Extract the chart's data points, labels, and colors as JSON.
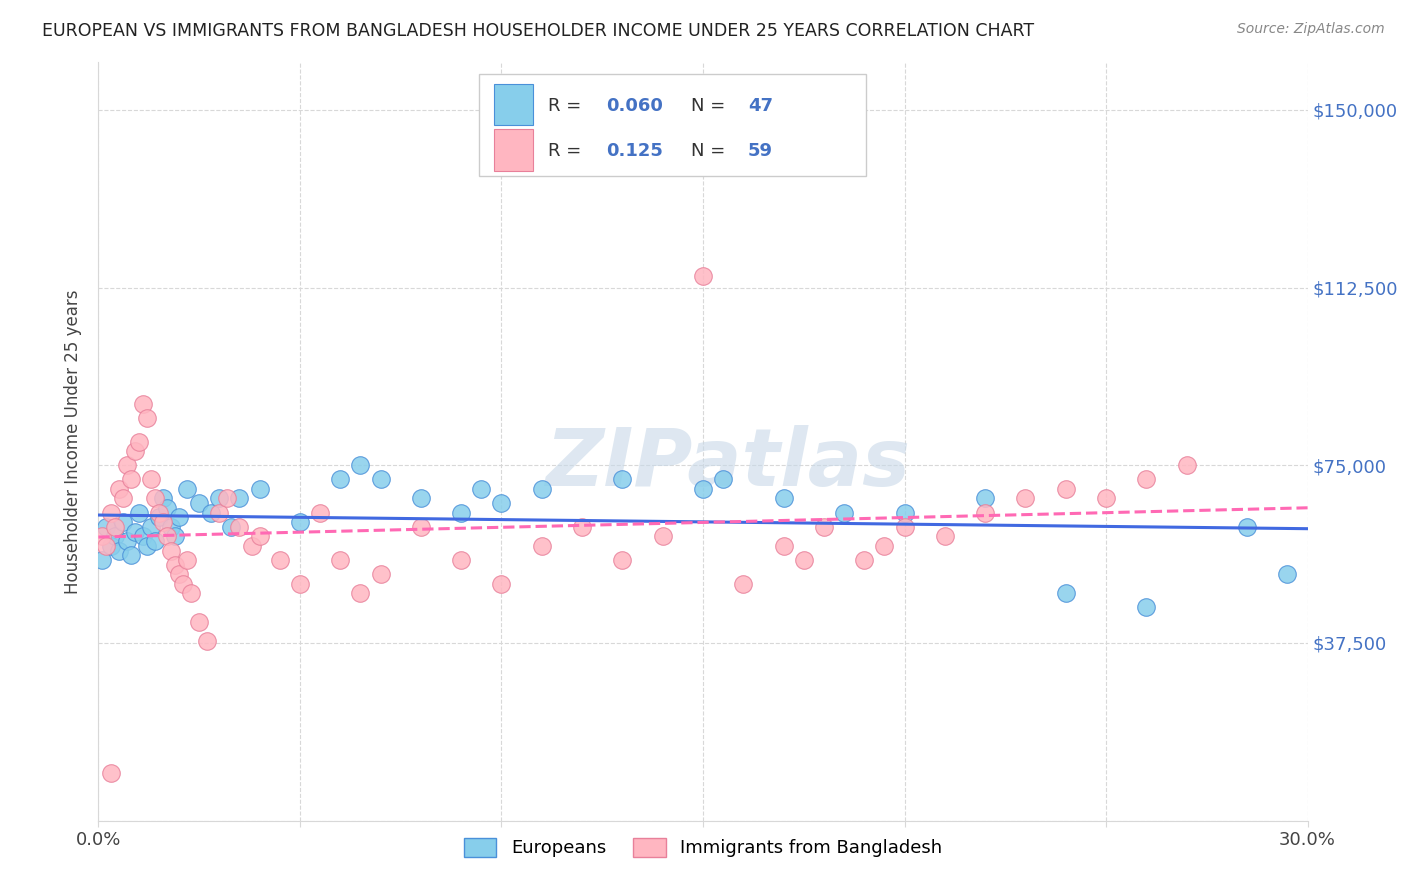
{
  "title": "EUROPEAN VS IMMIGRANTS FROM BANGLADESH HOUSEHOLDER INCOME UNDER 25 YEARS CORRELATION CHART",
  "source": "Source: ZipAtlas.com",
  "ylabel": "Householder Income Under 25 years",
  "xlim": [
    0.0,
    0.3
  ],
  "ylim": [
    0,
    160000
  ],
  "yticks": [
    0,
    37500,
    75000,
    112500,
    150000
  ],
  "ytick_labels": [
    "",
    "$37,500",
    "$75,000",
    "$112,500",
    "$150,000"
  ],
  "xticks": [
    0.0,
    0.05,
    0.1,
    0.15,
    0.2,
    0.25,
    0.3
  ],
  "xtick_labels": [
    "0.0%",
    "",
    "",
    "",
    "",
    "",
    "30.0%"
  ],
  "color_blue": "#87CEEB",
  "color_pink": "#FFB6C1",
  "color_blue_line": "#4169E1",
  "color_pink_line": "#FF69B4",
  "watermark_color": "#C8D8E8",
  "eu_x": [
    0.001,
    0.002,
    0.003,
    0.004,
    0.005,
    0.006,
    0.007,
    0.008,
    0.009,
    0.01,
    0.011,
    0.012,
    0.013,
    0.014,
    0.015,
    0.016,
    0.017,
    0.018,
    0.019,
    0.02,
    0.022,
    0.025,
    0.028,
    0.03,
    0.033,
    0.035,
    0.04,
    0.05,
    0.06,
    0.065,
    0.07,
    0.08,
    0.09,
    0.095,
    0.1,
    0.11,
    0.13,
    0.15,
    0.155,
    0.17,
    0.185,
    0.2,
    0.22,
    0.24,
    0.26,
    0.285,
    0.295
  ],
  "eu_y": [
    55000,
    62000,
    58000,
    60000,
    57000,
    63000,
    59000,
    56000,
    61000,
    65000,
    60000,
    58000,
    62000,
    59000,
    64000,
    68000,
    66000,
    62000,
    60000,
    64000,
    70000,
    67000,
    65000,
    68000,
    62000,
    68000,
    70000,
    63000,
    72000,
    75000,
    72000,
    68000,
    65000,
    70000,
    67000,
    70000,
    72000,
    70000,
    72000,
    68000,
    65000,
    65000,
    68000,
    48000,
    45000,
    62000,
    52000
  ],
  "bd_x": [
    0.001,
    0.002,
    0.003,
    0.004,
    0.005,
    0.006,
    0.007,
    0.008,
    0.009,
    0.01,
    0.011,
    0.012,
    0.013,
    0.014,
    0.015,
    0.016,
    0.017,
    0.018,
    0.019,
    0.02,
    0.021,
    0.022,
    0.023,
    0.025,
    0.027,
    0.03,
    0.032,
    0.035,
    0.038,
    0.04,
    0.045,
    0.05,
    0.055,
    0.06,
    0.065,
    0.07,
    0.08,
    0.09,
    0.1,
    0.11,
    0.12,
    0.13,
    0.14,
    0.15,
    0.16,
    0.17,
    0.175,
    0.18,
    0.19,
    0.195,
    0.2,
    0.21,
    0.22,
    0.23,
    0.24,
    0.25,
    0.26,
    0.27,
    0.003
  ],
  "bd_y": [
    60000,
    58000,
    65000,
    62000,
    70000,
    68000,
    75000,
    72000,
    78000,
    80000,
    88000,
    85000,
    72000,
    68000,
    65000,
    63000,
    60000,
    57000,
    54000,
    52000,
    50000,
    55000,
    48000,
    42000,
    38000,
    65000,
    68000,
    62000,
    58000,
    60000,
    55000,
    50000,
    65000,
    55000,
    48000,
    52000,
    62000,
    55000,
    50000,
    58000,
    62000,
    55000,
    60000,
    115000,
    50000,
    58000,
    55000,
    62000,
    55000,
    58000,
    62000,
    60000,
    65000,
    68000,
    70000,
    68000,
    72000,
    75000,
    10000
  ]
}
